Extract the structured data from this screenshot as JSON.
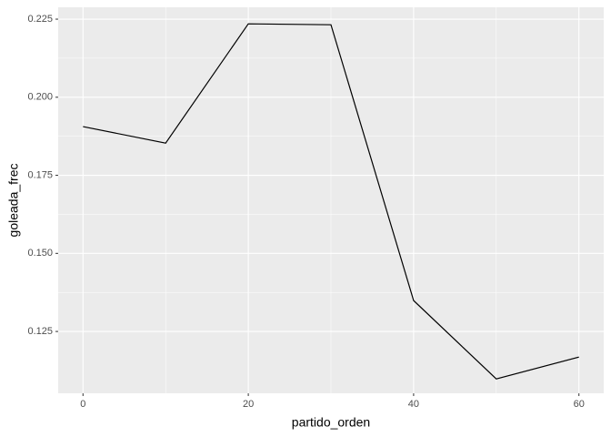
{
  "chart_data": {
    "type": "line",
    "x_label": "partido_orden",
    "y_label": "goleada_frec",
    "x": [
      0,
      10,
      20,
      30,
      40,
      50,
      60
    ],
    "series": [
      {
        "color": "#000000",
        "values": [
          0.1906,
          0.1853,
          0.2235,
          0.2232,
          0.1349,
          0.1098,
          0.1168
        ]
      }
    ],
    "xlim": [
      -3,
      63
    ],
    "xticks": [
      0,
      20,
      40,
      60
    ],
    "ylim": [
      0.1052,
      0.2288
    ],
    "yticks": [
      {
        "value": 0.125,
        "label": "0.125"
      },
      {
        "value": 0.15,
        "label": "0.150"
      },
      {
        "value": 0.175,
        "label": "0.175"
      },
      {
        "value": 0.2,
        "label": "0.200"
      },
      {
        "value": 0.225,
        "label": "0.225"
      }
    ],
    "grid": true,
    "minor_grid": true,
    "panel_color": "#ebebeb"
  }
}
